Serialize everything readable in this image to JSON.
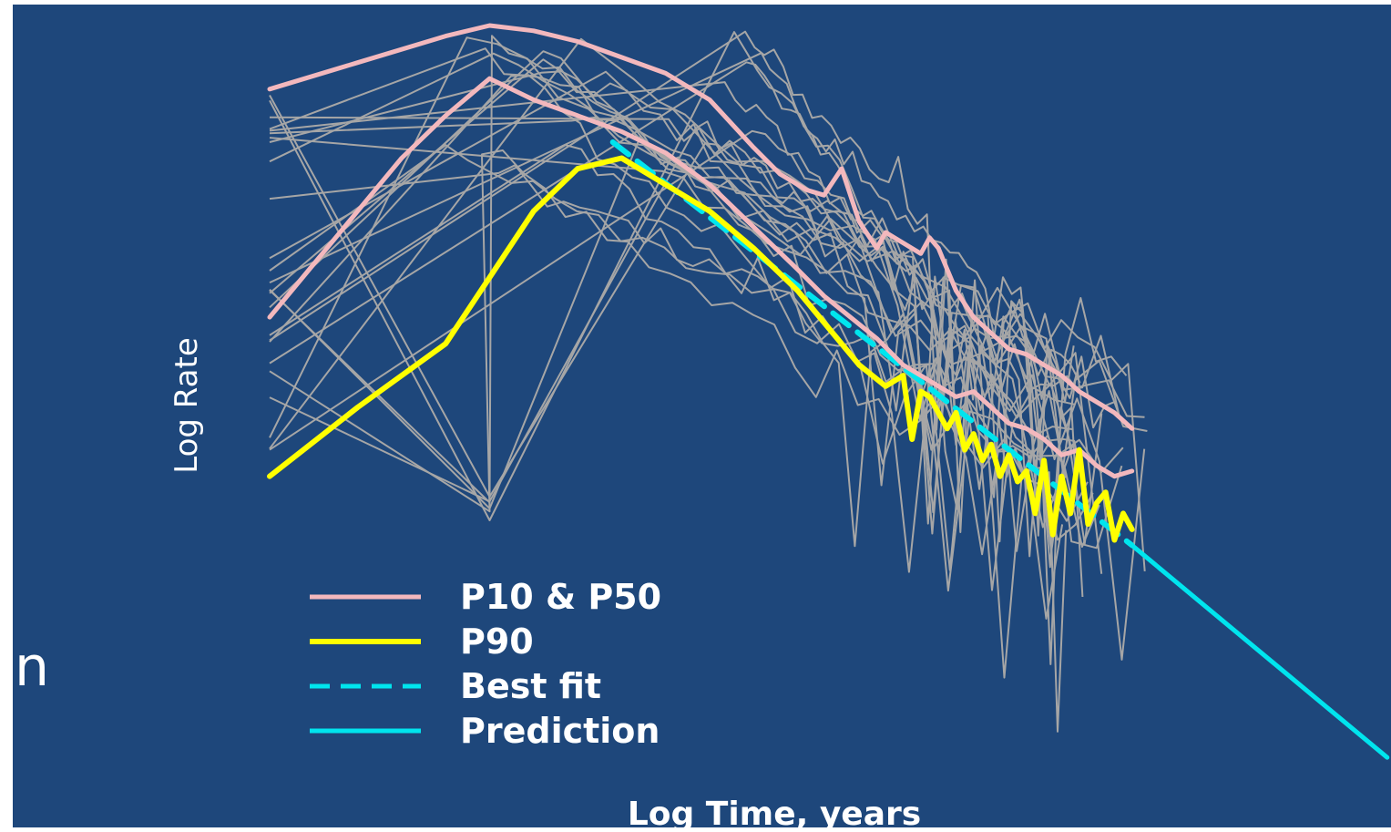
{
  "colors": {
    "background": "#1e477b",
    "wells": "#a6a6a6",
    "p10_p50": "#f3b8bd",
    "p90": "#ffff00",
    "fit": "#00e5ee"
  },
  "left_fragment": "n",
  "chart_data": {
    "type": "line",
    "title": "",
    "xlabel": "Log Time, years",
    "ylabel": "Log Rate",
    "xlim": [
      0,
      100
    ],
    "ylim": [
      0,
      100
    ],
    "grid": false,
    "legend_position": "bottom-left",
    "legend": [
      {
        "label": "P10 & P50",
        "style": "solid",
        "color_key": "p10_p50"
      },
      {
        "label": "P90",
        "style": "solid",
        "color_key": "p90"
      },
      {
        "label": "Best fit",
        "style": "dashed",
        "color_key": "fit"
      },
      {
        "label": "Prediction",
        "style": "solid",
        "color_key": "fit"
      }
    ],
    "series": [
      {
        "name": "P10 & P50",
        "key": "p10",
        "color_key": "p10_p50",
        "x": [
          0,
          10,
          20,
          25,
          30,
          35,
          40,
          45,
          50,
          55,
          58,
          61,
          63,
          65,
          67,
          69,
          70,
          72,
          74,
          75,
          76,
          77,
          78,
          80,
          82,
          84,
          86,
          88,
          90,
          92,
          94,
          96,
          98
        ],
        "y": [
          88,
          93,
          98,
          100,
          99,
          97,
          94,
          91,
          86,
          77,
          72,
          69,
          68,
          73,
          63,
          58,
          61,
          59,
          57,
          60,
          58,
          54,
          50,
          45,
          42,
          39,
          38,
          36,
          34,
          31,
          29,
          27,
          24
        ]
      },
      {
        "name": "P10 & P50",
        "key": "p50",
        "color_key": "p10_p50",
        "x": [
          0,
          5,
          10,
          15,
          20,
          25,
          30,
          35,
          40,
          45,
          50,
          55,
          60,
          63,
          66,
          69,
          72,
          75,
          78,
          80,
          82,
          84,
          86,
          88,
          90,
          92,
          94,
          96,
          98
        ],
        "y": [
          45,
          55,
          65,
          75,
          83,
          90,
          86,
          83,
          80,
          76,
          70,
          62,
          54,
          49,
          45,
          41,
          36,
          33,
          30,
          31,
          28,
          25,
          24,
          22,
          19,
          20,
          17,
          15,
          16
        ]
      },
      {
        "name": "P90",
        "key": "p90",
        "color_key": "p90",
        "x": [
          0,
          10,
          20,
          30,
          35,
          40,
          45,
          50,
          55,
          60,
          63,
          65,
          67,
          70,
          72,
          73,
          74,
          75,
          77,
          78,
          79,
          80,
          81,
          82,
          83,
          84,
          85,
          86,
          87,
          88,
          89,
          90,
          91,
          92,
          93,
          94,
          95,
          96,
          97,
          98
        ],
        "y": [
          15,
          28,
          40,
          65,
          73,
          75,
          70,
          65,
          58,
          50,
          44,
          40,
          36,
          32,
          34,
          22,
          31,
          30,
          24,
          27,
          20,
          23,
          18,
          21,
          15,
          19,
          14,
          16,
          8,
          18,
          4,
          15,
          8,
          20,
          6,
          10,
          12,
          3,
          8,
          5
        ]
      },
      {
        "name": "Best fit",
        "key": "fit",
        "color_key": "fit",
        "x": [
          39,
          98
        ],
        "y": [
          78,
          2
        ]
      },
      {
        "name": "Prediction",
        "key": "pred",
        "color_key": "fit",
        "x": [
          98,
          127
        ],
        "y": [
          2,
          -38
        ]
      }
    ]
  }
}
